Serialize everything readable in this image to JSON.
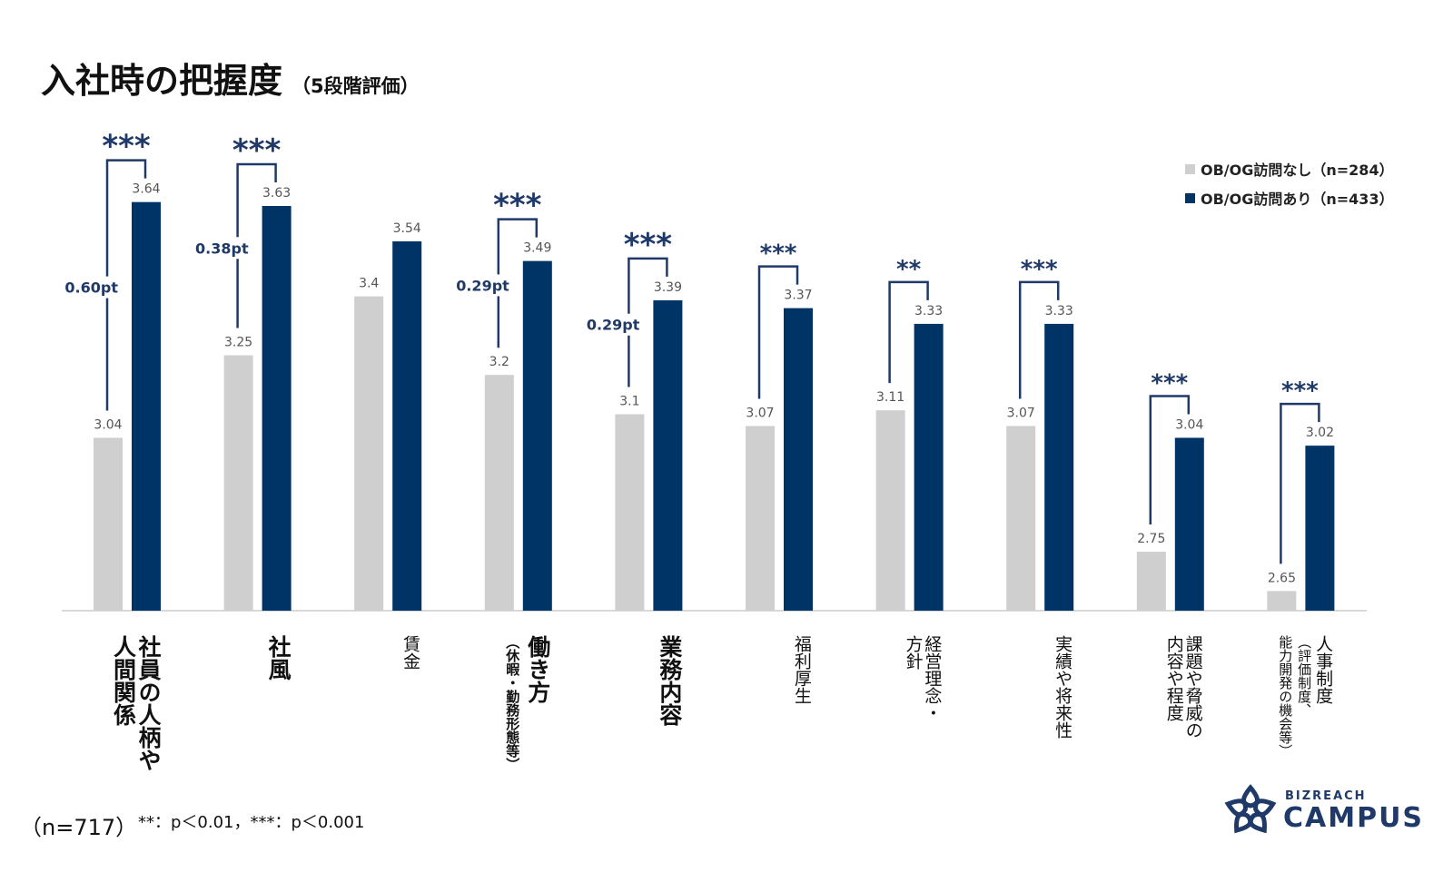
{
  "title": "入社時の把握度",
  "subtitle": "（5段階評価）",
  "sample_note": "（n=717）",
  "significance_note": "**：p＜0.01，***：p＜0.001",
  "logo": {
    "top": "BIZREACH",
    "main": "CAMPUS"
  },
  "chart_data": {
    "type": "bar",
    "categories": [
      {
        "lines": [
          "社員の人柄や",
          "人間関係"
        ],
        "emphasis": true
      },
      {
        "lines": [
          "社風"
        ],
        "emphasis": true
      },
      {
        "lines": [
          "賃金"
        ],
        "emphasis": false
      },
      {
        "lines": [
          "働き方",
          "（休暇・勤務形態等）"
        ],
        "emphasis": true
      },
      {
        "lines": [
          "業務内容"
        ],
        "emphasis": true
      },
      {
        "lines": [
          "福利厚生"
        ],
        "emphasis": false
      },
      {
        "lines": [
          "経営理念・",
          "方針"
        ],
        "emphasis": false
      },
      {
        "lines": [
          "実績や将来性"
        ],
        "emphasis": false
      },
      {
        "lines": [
          "課題や脅威の",
          "内容や程度"
        ],
        "emphasis": false
      },
      {
        "lines": [
          "人事制度",
          "（評価制度、",
          "能力開発の機会等）"
        ],
        "emphasis": false
      }
    ],
    "series": [
      {
        "name": "OB/OG訪問なし（n=284）",
        "color": "#d0cfcf",
        "values": [
          3.04,
          3.25,
          3.4,
          3.2,
          3.1,
          3.07,
          3.11,
          3.07,
          2.75,
          2.65
        ],
        "labels": [
          "3.04",
          "3.25",
          "3.4",
          "3.2",
          "3.1",
          "3.07",
          "3.11",
          "3.07",
          "2.75",
          "2.65"
        ]
      },
      {
        "name": "OB/OG訪問あり（n=433）",
        "color": "#003366",
        "values": [
          3.64,
          3.63,
          3.54,
          3.49,
          3.39,
          3.37,
          3.33,
          3.33,
          3.04,
          3.02
        ],
        "labels": [
          "3.64",
          "3.63",
          "3.54",
          "3.49",
          "3.39",
          "3.37",
          "3.33",
          "3.33",
          "3.04",
          "3.02"
        ]
      }
    ],
    "significance": [
      "***",
      "***",
      "",
      "***",
      "***",
      "***",
      "**",
      "***",
      "***",
      "***"
    ],
    "differences": [
      "0.60pt",
      "0.38pt",
      "",
      "0.29pt",
      "0.29pt",
      "",
      "",
      "",
      "",
      ""
    ],
    "ylim": [
      2.6,
      3.7
    ],
    "legend": "top-right",
    "grid": false
  }
}
